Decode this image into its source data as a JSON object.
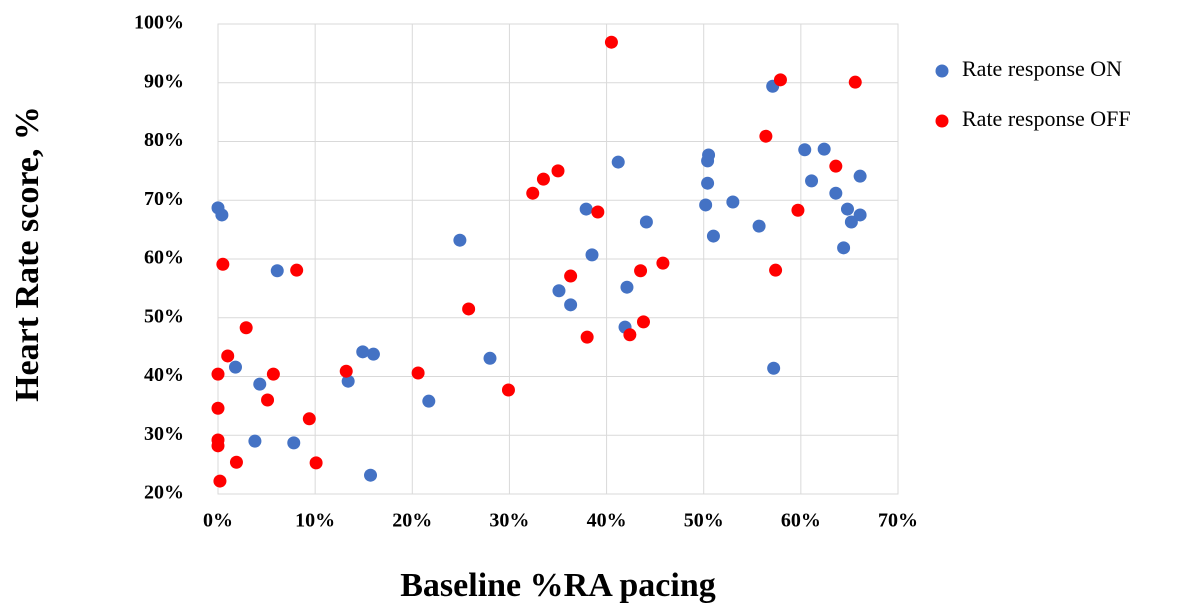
{
  "chart_data": {
    "type": "scatter",
    "x_label": "Baseline %RA pacing",
    "y_label": "Heart Rate score, %",
    "xlim": [
      0,
      70
    ],
    "ylim": [
      20,
      100
    ],
    "xticks": [
      {
        "value": 0,
        "label": "0%"
      },
      {
        "value": 10,
        "label": "10%"
      },
      {
        "value": 20,
        "label": "20%"
      },
      {
        "value": 30,
        "label": "30%"
      },
      {
        "value": 40,
        "label": "40%"
      },
      {
        "value": 50,
        "label": "50%"
      },
      {
        "value": 60,
        "label": "60%"
      },
      {
        "value": 70,
        "label": "70%"
      }
    ],
    "yticks": [
      {
        "value": 20,
        "label": "20%"
      },
      {
        "value": 30,
        "label": "30%"
      },
      {
        "value": 40,
        "label": "40%"
      },
      {
        "value": 50,
        "label": "50%"
      },
      {
        "value": 60,
        "label": "60%"
      },
      {
        "value": 70,
        "label": "70%"
      },
      {
        "value": 80,
        "label": "80%"
      },
      {
        "value": 90,
        "label": "90%"
      },
      {
        "value": 100,
        "label": "100%"
      }
    ],
    "grid": true,
    "legend": "right",
    "series": [
      {
        "name": "Rate response ON",
        "color": "#4472c4",
        "x": [
          0.0,
          0.4,
          1.8,
          3.8,
          4.3,
          6.1,
          7.8,
          13.4,
          14.9,
          16.0,
          15.7,
          21.7,
          24.9,
          28.0,
          35.1,
          36.3,
          37.9,
          38.5,
          41.2,
          41.9,
          42.1,
          44.1,
          50.2,
          50.4,
          50.5,
          50.4,
          51.0,
          53.0,
          55.7,
          57.1,
          57.2,
          60.4,
          61.1,
          62.4,
          63.6,
          64.4,
          64.8,
          65.2,
          66.1,
          66.1
        ],
        "values": [
          68.7,
          67.5,
          41.6,
          29.0,
          38.7,
          58.0,
          28.7,
          39.2,
          44.2,
          43.8,
          23.2,
          35.8,
          63.2,
          43.1,
          54.6,
          52.2,
          68.5,
          60.7,
          76.5,
          48.4,
          55.2,
          66.3,
          69.2,
          76.7,
          77.7,
          72.9,
          63.9,
          69.7,
          65.6,
          89.4,
          41.4,
          78.6,
          73.3,
          78.7,
          71.2,
          61.9,
          68.5,
          66.3,
          74.1,
          67.5
        ]
      },
      {
        "name": "Rate response OFF",
        "color": "#ff0000",
        "x": [
          0.0,
          0.0,
          0.0,
          0.0,
          0.2,
          0.5,
          1.0,
          1.9,
          2.9,
          5.1,
          5.7,
          8.1,
          9.4,
          10.1,
          13.2,
          20.6,
          25.8,
          29.9,
          32.4,
          33.5,
          35.0,
          36.3,
          38.0,
          39.1,
          40.5,
          42.4,
          43.5,
          43.8,
          45.8,
          56.4,
          57.4,
          57.9,
          59.7,
          63.6,
          65.6
        ],
        "values": [
          40.4,
          34.6,
          29.2,
          28.2,
          22.2,
          59.1,
          43.5,
          25.4,
          48.3,
          36.0,
          40.4,
          58.1,
          32.8,
          25.3,
          40.9,
          40.6,
          51.5,
          37.7,
          71.2,
          73.6,
          75.0,
          57.1,
          46.7,
          68.0,
          96.9,
          47.1,
          58.0,
          49.3,
          59.3,
          80.9,
          58.1,
          90.5,
          68.3,
          75.8,
          90.1
        ]
      }
    ]
  }
}
